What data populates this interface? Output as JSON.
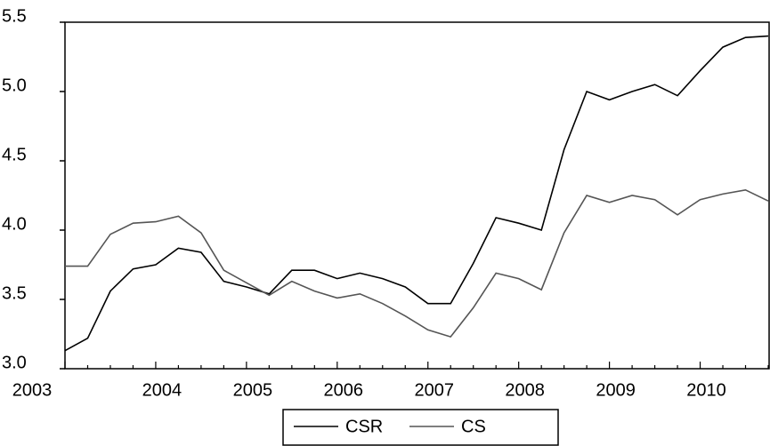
{
  "chart_data": {
    "type": "line",
    "categories": [
      "2003",
      null,
      null,
      null,
      "2004",
      null,
      null,
      null,
      "2005",
      null,
      null,
      null,
      "2006",
      null,
      null,
      null,
      "2007",
      null,
      null,
      null,
      "2008",
      null,
      null,
      null,
      "2009",
      null,
      null,
      null,
      "2010",
      null,
      null,
      null
    ],
    "series": [
      {
        "name": "CSR",
        "color": "#000000",
        "values": [
          3.13,
          3.22,
          3.56,
          3.72,
          3.75,
          3.87,
          3.84,
          3.63,
          3.59,
          3.54,
          3.71,
          3.71,
          3.65,
          3.69,
          3.65,
          3.59,
          3.47,
          3.47,
          3.76,
          4.09,
          4.05,
          4.0,
          4.58,
          5.0,
          4.94,
          5.0,
          5.05,
          4.97,
          5.15,
          5.32,
          5.39,
          5.4
        ]
      },
      {
        "name": "CS",
        "color": "#555555",
        "values": [
          3.74,
          3.74,
          3.97,
          4.05,
          4.06,
          4.1,
          3.98,
          3.71,
          3.62,
          3.53,
          3.63,
          3.56,
          3.51,
          3.54,
          3.47,
          3.38,
          3.28,
          3.23,
          3.44,
          3.69,
          3.65,
          3.57,
          3.98,
          4.25,
          4.2,
          4.25,
          4.22,
          4.11,
          4.22,
          4.26,
          4.29,
          4.21
        ]
      }
    ],
    "ylim": [
      3.0,
      5.5
    ],
    "yticks": [
      {
        "value": 3,
        "label": "3.0"
      },
      3.5,
      {
        "value": 4,
        "label": "4.0"
      },
      4.5,
      {
        "value": 5,
        "label": "5.0"
      },
      5.5
    ],
    "legend": "bottom"
  }
}
